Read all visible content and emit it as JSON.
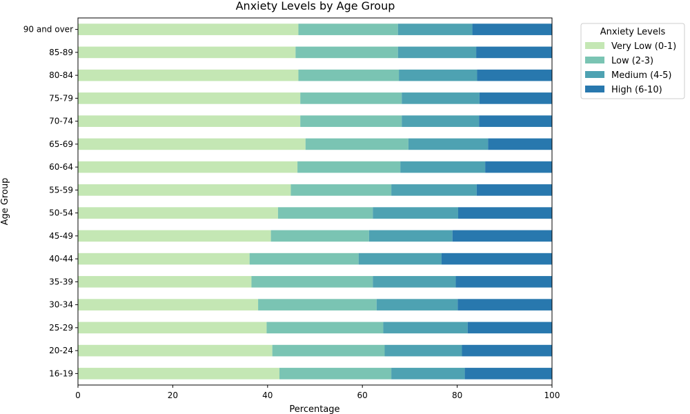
{
  "chart_data": {
    "type": "bar",
    "orientation": "horizontal",
    "stacked": true,
    "title": "Anxiety Levels by Age Group",
    "xlabel": "Percentage",
    "ylabel": "Age Group",
    "xlim": [
      0,
      100
    ],
    "xticks": [
      0,
      20,
      40,
      60,
      80,
      100
    ],
    "legend_title": "Anxiety Levels",
    "legend_placement": "outside-top-right",
    "grid": false,
    "categories": [
      "16-19",
      "20-24",
      "25-29",
      "30-34",
      "35-39",
      "40-44",
      "45-49",
      "50-54",
      "55-59",
      "60-64",
      "65-69",
      "70-74",
      "75-79",
      "80-84",
      "85-89",
      "90 and over"
    ],
    "series": [
      {
        "name": "Very Low (0-1)",
        "color": "#c4e7b4",
        "values": [
          42.5,
          41.0,
          39.8,
          38.0,
          36.6,
          36.2,
          40.7,
          42.2,
          44.9,
          46.3,
          48.0,
          46.9,
          46.9,
          46.5,
          45.9,
          46.5
        ]
      },
      {
        "name": "Low (2-3)",
        "color": "#7ac4b3",
        "values": [
          23.6,
          23.7,
          24.6,
          25.0,
          25.6,
          23.0,
          20.7,
          20.0,
          21.2,
          21.7,
          21.7,
          21.4,
          21.4,
          21.2,
          21.6,
          21.0
        ]
      },
      {
        "name": "Medium (4-5)",
        "color": "#4ea2b2",
        "values": [
          15.5,
          16.3,
          17.8,
          17.1,
          17.5,
          17.5,
          17.6,
          18.0,
          18.0,
          17.9,
          16.8,
          16.3,
          16.4,
          16.5,
          16.5,
          15.7
        ]
      },
      {
        "name": "High (6-10)",
        "color": "#2878ae",
        "values": [
          18.4,
          19.0,
          17.8,
          19.9,
          20.3,
          23.3,
          21.0,
          19.8,
          15.9,
          14.1,
          13.5,
          15.4,
          15.3,
          15.8,
          16.0,
          16.8
        ]
      }
    ]
  }
}
